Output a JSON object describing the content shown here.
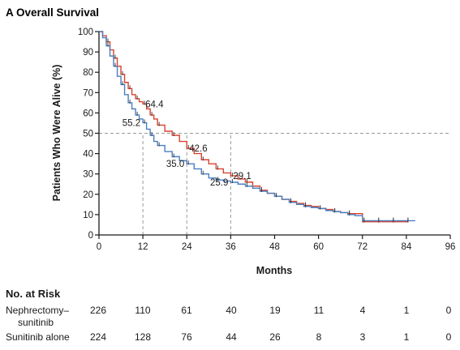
{
  "panel_title": "A  Overall Survival",
  "chart_data": {
    "type": "line",
    "title": "A  Overall Survival",
    "xlabel": "Months",
    "ylabel": "Patients Who Were Alive (%)",
    "xlim": [
      0,
      96
    ],
    "ylim": [
      0,
      100
    ],
    "xticks": [
      0,
      12,
      24,
      36,
      48,
      60,
      72,
      84,
      96
    ],
    "yticks": [
      0,
      10,
      20,
      30,
      40,
      50,
      60,
      70,
      80,
      90,
      100
    ],
    "median_line": 50,
    "colors": {
      "nephrectomy": "#d9432f",
      "sunitinib_alone": "#4a7fc1",
      "axis": "#1a1a1a",
      "guide": "#999999"
    },
    "series": [
      {
        "name": "Nephrectomy–sunitinib",
        "color": "#d9432f",
        "x": [
          0,
          1,
          2,
          3,
          4,
          5,
          6,
          7,
          8,
          9,
          10,
          11,
          12,
          13,
          14,
          15,
          16,
          18,
          20,
          22,
          24,
          26,
          28,
          30,
          32,
          34,
          36,
          38,
          40,
          42,
          44,
          46,
          48,
          50,
          52,
          54,
          56,
          58,
          60,
          62,
          64,
          66,
          68,
          70,
          72,
          74,
          76,
          78,
          80,
          82,
          84
        ],
        "y": [
          100,
          98,
          95,
          91,
          87,
          83,
          79,
          75,
          72,
          69,
          67,
          65.5,
          64.4,
          62,
          59,
          57,
          54,
          51,
          49,
          46,
          42.6,
          40,
          37,
          35,
          32.5,
          30.5,
          29.1,
          27.5,
          26,
          24,
          22,
          20.5,
          19,
          17.5,
          16.5,
          15.5,
          14.5,
          14,
          13,
          12.5,
          11.5,
          11,
          10.5,
          10.5,
          6.5,
          6.5,
          6.5,
          6.5,
          6.5,
          6.5,
          6.5
        ]
      },
      {
        "name": "Sunitinib alone",
        "color": "#4a7fc1",
        "x": [
          0,
          1,
          2,
          3,
          4,
          5,
          6,
          7,
          8,
          9,
          10,
          11,
          12,
          13,
          14,
          15,
          16,
          18,
          20,
          22,
          24,
          26,
          28,
          30,
          32,
          34,
          36,
          38,
          40,
          42,
          44,
          46,
          48,
          50,
          52,
          54,
          56,
          58,
          60,
          62,
          64,
          66,
          68,
          70,
          72,
          74,
          76,
          78,
          80,
          82,
          84,
          86
        ],
        "y": [
          100,
          97,
          93,
          88,
          83,
          78,
          74,
          69,
          65,
          62,
          59,
          57,
          55.2,
          52,
          49,
          46,
          44,
          41,
          38.5,
          36.5,
          35.0,
          32.5,
          30,
          28,
          27,
          26.5,
          25.9,
          25,
          24,
          23,
          21.5,
          20.5,
          19,
          17.5,
          16,
          15,
          14,
          13.5,
          13,
          12,
          11.5,
          11,
          10,
          9.5,
          7,
          7,
          7,
          7,
          7,
          7,
          7,
          7
        ]
      }
    ],
    "annotations": [
      {
        "x": 12,
        "y": 64.4,
        "text": "64.4",
        "side": "right"
      },
      {
        "x": 12,
        "y": 55.2,
        "text": "55.2",
        "side": "left"
      },
      {
        "x": 24,
        "y": 42.6,
        "text": "42.6",
        "side": "right"
      },
      {
        "x": 24,
        "y": 35.0,
        "text": "35.0",
        "side": "left"
      },
      {
        "x": 36,
        "y": 29.1,
        "text": "29.1",
        "side": "right"
      },
      {
        "x": 36,
        "y": 25.9,
        "text": "25.9",
        "side": "left"
      }
    ],
    "guides_at": [
      12,
      24,
      36
    ]
  },
  "at_risk": {
    "title": "No. at Risk",
    "rows": [
      {
        "label": "Nephrectomy–",
        "label2": "sunitinib",
        "values": [
          226,
          110,
          61,
          40,
          19,
          11,
          4,
          1,
          0
        ]
      },
      {
        "label": "Sunitinib alone",
        "label2": "",
        "values": [
          224,
          128,
          76,
          44,
          26,
          8,
          3,
          1,
          0
        ]
      }
    ]
  }
}
